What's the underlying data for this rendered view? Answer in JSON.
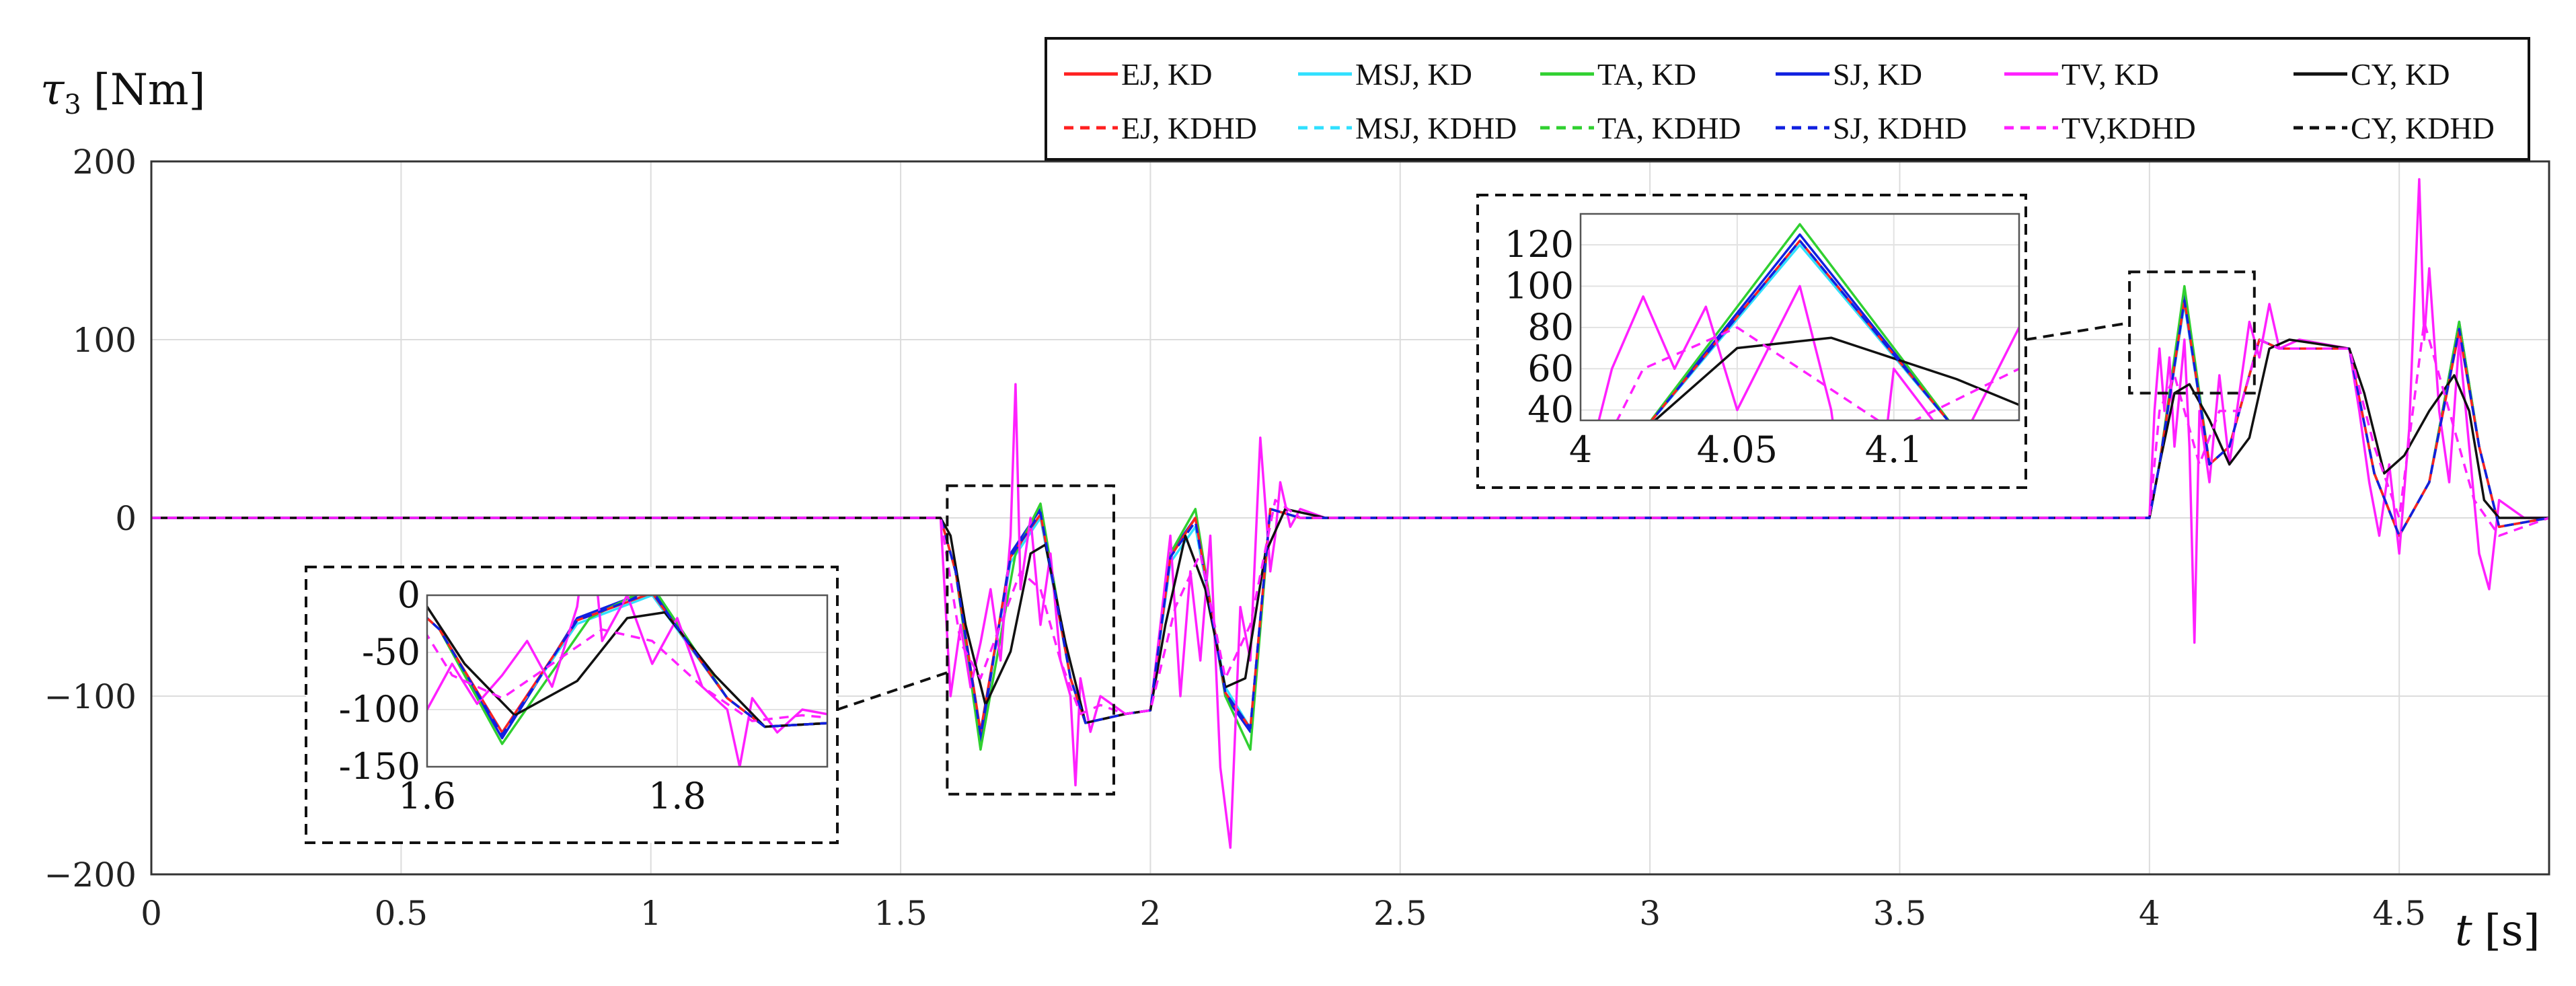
{
  "chart_data": {
    "type": "line",
    "ylabel_sym": "τ",
    "ylabel_sub": "3",
    "ylabel_unit": "[Nm]",
    "xlabel_sym": "t",
    "xlabel_unit": "[s]",
    "xlim": [
      0,
      4.8
    ],
    "ylim": [
      -200,
      200
    ],
    "xticks": [
      0,
      0.5,
      1,
      1.5,
      2,
      2.5,
      3,
      3.5,
      4,
      4.5
    ],
    "xtick_labels": [
      "0",
      "0.5",
      "1",
      "1.5",
      "2",
      "2.5",
      "3",
      "3.5",
      "4",
      "4.5"
    ],
    "yticks": [
      -200,
      -100,
      0,
      100,
      200
    ],
    "ytick_labels": [
      "−200",
      "−100",
      "0",
      "100",
      "200"
    ],
    "grid": true,
    "legend_placement": "top-right",
    "legend": [
      {
        "label": "EJ, KD",
        "color": "#ff2020",
        "dash": false
      },
      {
        "label": "MSJ, KD",
        "color": "#30e0ff",
        "dash": false
      },
      {
        "label": "TA, KD",
        "color": "#30d030",
        "dash": false
      },
      {
        "label": "SJ, KD",
        "color": "#1020e0",
        "dash": false
      },
      {
        "label": "TV, KD",
        "color": "#ff20ff",
        "dash": false
      },
      {
        "label": "CY, KD",
        "color": "#111111",
        "dash": false
      },
      {
        "label": "EJ, KDHD",
        "color": "#ff2020",
        "dash": true
      },
      {
        "label": "MSJ, KDHD",
        "color": "#30e0ff",
        "dash": true
      },
      {
        "label": "TA, KDHD",
        "color": "#30d030",
        "dash": true
      },
      {
        "label": "SJ, KDHD",
        "color": "#1020e0",
        "dash": true
      },
      {
        "label": "TV,KDHD",
        "color": "#ff20ff",
        "dash": true
      },
      {
        "label": "CY, KDHD",
        "color": "#111111",
        "dash": true
      }
    ],
    "series": [
      {
        "name": "SJ, KD",
        "color": "#1020e0",
        "dash": false,
        "x": [
          0,
          1.58,
          1.61,
          1.66,
          1.72,
          1.78,
          1.84,
          1.87,
          1.95,
          2.0,
          2.04,
          2.09,
          2.15,
          2.2,
          2.24,
          2.3,
          2.4,
          4.0,
          4.02,
          4.07,
          4.12,
          4.16,
          4.22,
          4.26,
          4.4,
          4.45,
          4.5,
          4.56,
          4.62,
          4.66,
          4.7,
          4.8
        ],
        "y": [
          0,
          0,
          -30,
          -125,
          -20,
          5,
          -90,
          -115,
          -110,
          -108,
          -20,
          0,
          -100,
          -120,
          5,
          0,
          0,
          0,
          30,
          125,
          30,
          40,
          100,
          95,
          95,
          25,
          -10,
          20,
          110,
          40,
          -5,
          0
        ]
      },
      {
        "name": "MSJ, KD",
        "color": "#30e0ff",
        "dash": false,
        "x": [
          0,
          1.58,
          1.61,
          1.66,
          1.72,
          1.78,
          1.84,
          1.87,
          1.95,
          2.0,
          2.04,
          2.09,
          2.15,
          2.2,
          2.24,
          2.3,
          2.4,
          4.0,
          4.02,
          4.07,
          4.12,
          4.16,
          4.22,
          4.26,
          4.4,
          4.45,
          4.5,
          4.56,
          4.62,
          4.66,
          4.7,
          4.8
        ],
        "y": [
          0,
          0,
          -30,
          -120,
          -25,
          0,
          -90,
          -115,
          -110,
          -108,
          -25,
          -5,
          -95,
          -118,
          5,
          0,
          0,
          0,
          30,
          120,
          30,
          40,
          100,
          95,
          95,
          25,
          -10,
          20,
          105,
          40,
          -5,
          0
        ]
      },
      {
        "name": "TA, KD",
        "color": "#30d030",
        "dash": false,
        "x": [
          0,
          1.58,
          1.61,
          1.66,
          1.73,
          1.78,
          1.84,
          1.87,
          1.95,
          2.0,
          2.04,
          2.09,
          2.15,
          2.2,
          2.24,
          2.3,
          2.4,
          4.0,
          4.02,
          4.07,
          4.12,
          4.16,
          4.22,
          4.26,
          4.4,
          4.45,
          4.5,
          4.56,
          4.62,
          4.66,
          4.7,
          4.8
        ],
        "y": [
          0,
          0,
          -30,
          -130,
          -20,
          8,
          -90,
          -115,
          -110,
          -108,
          -20,
          5,
          -100,
          -130,
          5,
          0,
          0,
          0,
          30,
          130,
          30,
          40,
          100,
          95,
          95,
          25,
          -10,
          20,
          110,
          40,
          -5,
          0
        ]
      },
      {
        "name": "EJ, KD",
        "color": "#ff2020",
        "dash": false,
        "x": [
          0,
          1.58,
          1.61,
          1.66,
          1.72,
          1.78,
          1.84,
          1.87,
          1.95,
          2.0,
          2.04,
          2.09,
          2.15,
          2.2,
          2.24,
          2.3,
          2.4,
          4.0,
          4.02,
          4.07,
          4.12,
          4.16,
          4.22,
          4.26,
          4.4,
          4.45,
          4.5,
          4.56,
          4.62,
          4.66,
          4.7,
          4.8
        ],
        "y": [
          0,
          0,
          -30,
          -120,
          -22,
          2,
          -90,
          -115,
          -110,
          -108,
          -22,
          0,
          -98,
          -118,
          5,
          0,
          0,
          0,
          30,
          122,
          30,
          40,
          100,
          95,
          95,
          25,
          -10,
          20,
          105,
          40,
          -5,
          0
        ]
      },
      {
        "name": "TV, KD",
        "color": "#ff20ff",
        "dash": false,
        "x": [
          0,
          1.58,
          1.6,
          1.62,
          1.64,
          1.66,
          1.68,
          1.7,
          1.72,
          1.73,
          1.74,
          1.76,
          1.78,
          1.8,
          1.82,
          1.84,
          1.85,
          1.86,
          1.88,
          1.9,
          1.95,
          2.0,
          2.02,
          2.04,
          2.06,
          2.08,
          2.1,
          2.12,
          2.14,
          2.16,
          2.18,
          2.2,
          2.22,
          2.24,
          2.25,
          2.26,
          2.28,
          2.3,
          2.35,
          2.4,
          4.0,
          4.01,
          4.02,
          4.03,
          4.04,
          4.05,
          4.06,
          4.07,
          4.08,
          4.09,
          4.1,
          4.12,
          4.14,
          4.16,
          4.18,
          4.2,
          4.22,
          4.24,
          4.26,
          4.3,
          4.4,
          4.42,
          4.44,
          4.46,
          4.48,
          4.5,
          4.52,
          4.54,
          4.55,
          4.56,
          4.58,
          4.6,
          4.62,
          4.64,
          4.66,
          4.68,
          4.7,
          4.75,
          4.8
        ],
        "y": [
          0,
          0,
          -100,
          -60,
          -95,
          -70,
          -40,
          -80,
          -10,
          75,
          -40,
          0,
          -60,
          -20,
          -80,
          -100,
          -150,
          -90,
          -120,
          -100,
          -110,
          -108,
          -60,
          -10,
          -100,
          -30,
          -80,
          -10,
          -140,
          -185,
          -50,
          -80,
          45,
          -30,
          -10,
          20,
          -5,
          5,
          0,
          0,
          0,
          60,
          95,
          60,
          90,
          40,
          70,
          100,
          40,
          -70,
          60,
          20,
          80,
          30,
          70,
          110,
          90,
          120,
          95,
          100,
          95,
          60,
          20,
          -10,
          30,
          -20,
          50,
          190,
          100,
          140,
          60,
          20,
          100,
          40,
          -20,
          -40,
          10,
          0,
          0
        ]
      },
      {
        "name": "CY, KD",
        "color": "#111111",
        "dash": false,
        "x": [
          0,
          1.58,
          1.6,
          1.63,
          1.67,
          1.72,
          1.76,
          1.79,
          1.83,
          1.87,
          1.95,
          2.0,
          2.03,
          2.07,
          2.11,
          2.15,
          2.19,
          2.23,
          2.27,
          2.35,
          2.4,
          4.0,
          4.02,
          4.05,
          4.08,
          4.12,
          4.16,
          4.2,
          4.24,
          4.28,
          4.4,
          4.43,
          4.47,
          4.51,
          4.56,
          4.61,
          4.64,
          4.67,
          4.7,
          4.8
        ],
        "y": [
          0,
          0,
          -10,
          -60,
          -105,
          -75,
          -20,
          -15,
          -70,
          -115,
          -110,
          -108,
          -60,
          -10,
          -40,
          -95,
          -90,
          -20,
          5,
          0,
          0,
          0,
          30,
          70,
          75,
          55,
          30,
          45,
          95,
          100,
          95,
          70,
          25,
          35,
          60,
          80,
          60,
          10,
          0,
          0
        ]
      },
      {
        "name": "SJ, KDHD",
        "color": "#1020e0",
        "dash": true,
        "x": [
          0,
          1.58,
          1.61,
          1.66,
          1.72,
          1.78,
          1.84,
          1.87,
          1.95,
          2.0,
          2.04,
          2.09,
          2.15,
          2.2,
          2.24,
          2.3,
          2.4,
          4.0,
          4.02,
          4.07,
          4.12,
          4.16,
          4.22,
          4.26,
          4.4,
          4.45,
          4.5,
          4.56,
          4.62,
          4.66,
          4.7,
          4.8
        ],
        "y": [
          0,
          0,
          -30,
          -122,
          -22,
          3,
          -90,
          -115,
          -110,
          -108,
          -22,
          -2,
          -98,
          -118,
          5,
          0,
          0,
          0,
          30,
          122,
          30,
          40,
          100,
          95,
          95,
          25,
          -10,
          20,
          106,
          40,
          -5,
          0
        ]
      },
      {
        "name": "TV,KDHD",
        "color": "#ff20ff",
        "dash": true,
        "x": [
          0,
          1.58,
          1.62,
          1.66,
          1.7,
          1.74,
          1.78,
          1.82,
          1.86,
          1.9,
          1.95,
          2.0,
          2.05,
          2.1,
          2.15,
          2.2,
          2.25,
          2.3,
          2.4,
          4.0,
          4.02,
          4.05,
          4.08,
          4.1,
          4.14,
          4.18,
          4.22,
          4.26,
          4.3,
          4.4,
          4.45,
          4.5,
          4.55,
          4.6,
          4.65,
          4.7,
          4.8
        ],
        "y": [
          0,
          0,
          -70,
          -90,
          -60,
          -30,
          -40,
          -80,
          -110,
          -105,
          -110,
          -108,
          -50,
          -20,
          -90,
          -60,
          10,
          0,
          0,
          0,
          60,
          80,
          50,
          30,
          60,
          60,
          100,
          95,
          95,
          95,
          40,
          0,
          110,
          60,
          10,
          -10,
          0
        ]
      }
    ],
    "inset_left": {
      "xlim": [
        1.6,
        1.92
      ],
      "ylim": [
        -150,
        0
      ],
      "xticks": [
        1.6,
        1.8
      ],
      "xtick_labels": [
        "1.6",
        "1.8"
      ],
      "yticks": [
        0,
        -50,
        -100,
        -150
      ],
      "ytick_labels": [
        "0",
        "-50",
        "-100",
        "-150"
      ]
    },
    "inset_right": {
      "xlim": [
        4.0,
        4.14
      ],
      "ylim": [
        35,
        135
      ],
      "xticks": [
        4.0,
        4.05,
        4.1
      ],
      "xtick_labels": [
        "4",
        "4.05",
        "4.1"
      ],
      "yticks": [
        40,
        60,
        80,
        100,
        120
      ],
      "ytick_labels": [
        "40",
        "60",
        "80",
        "100",
        "120"
      ]
    }
  }
}
